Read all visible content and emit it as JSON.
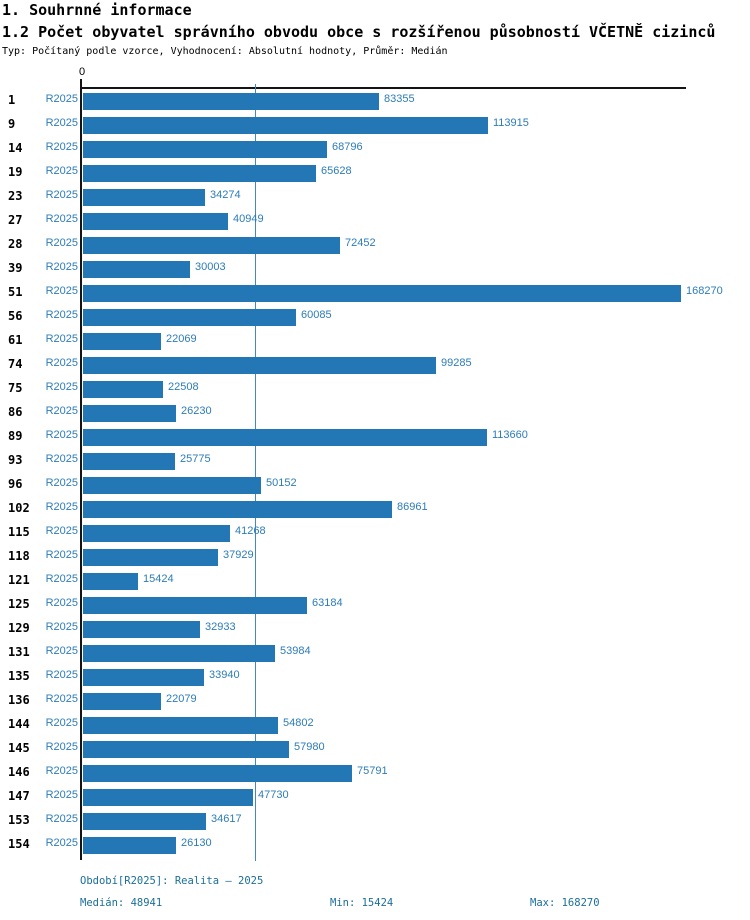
{
  "header": {
    "title1": "1. Souhrnné informace",
    "title2": "1.2 Počet obyvatel správního obvodu obce s rozšířenou působností VČETNĚ cizinců",
    "subtitle": "Typ: Počítaný podle vzorce, Vyhodnocení: Absolutní hodnoty, Průměr: Medián"
  },
  "chart_data": {
    "type": "bar",
    "orientation": "horizontal",
    "title": "1.2 Počet obyvatel správního obvodu obce s rozšířenou působností VČETNĚ cizinců",
    "series_name": "R2025",
    "categories": [
      "1",
      "9",
      "14",
      "19",
      "23",
      "27",
      "28",
      "39",
      "51",
      "56",
      "61",
      "74",
      "75",
      "86",
      "89",
      "93",
      "96",
      "102",
      "115",
      "118",
      "121",
      "125",
      "129",
      "131",
      "135",
      "136",
      "144",
      "145",
      "146",
      "147",
      "153",
      "154"
    ],
    "values": [
      83355,
      113915,
      68796,
      65628,
      34274,
      40949,
      72452,
      30003,
      168270,
      60085,
      22069,
      99285,
      22508,
      26230,
      113660,
      25775,
      50152,
      86961,
      41268,
      37929,
      15424,
      63184,
      32933,
      53984,
      33940,
      22079,
      54802,
      57980,
      75791,
      47730,
      34617,
      26130
    ],
    "xlim": [
      0,
      170000
    ],
    "x_axis_zero_label": "0",
    "median_value": 48941,
    "grid": "single median gridline",
    "legend_position": "none",
    "bar_color": "#2277b4",
    "label_color": "#2d7cb8",
    "median_line_color": "#4389bf"
  },
  "footer": {
    "period": "Období[R2025]: Realita – 2025",
    "median": "Medián: 48941",
    "min": "Min: 15424",
    "max": "Max: 168270"
  }
}
